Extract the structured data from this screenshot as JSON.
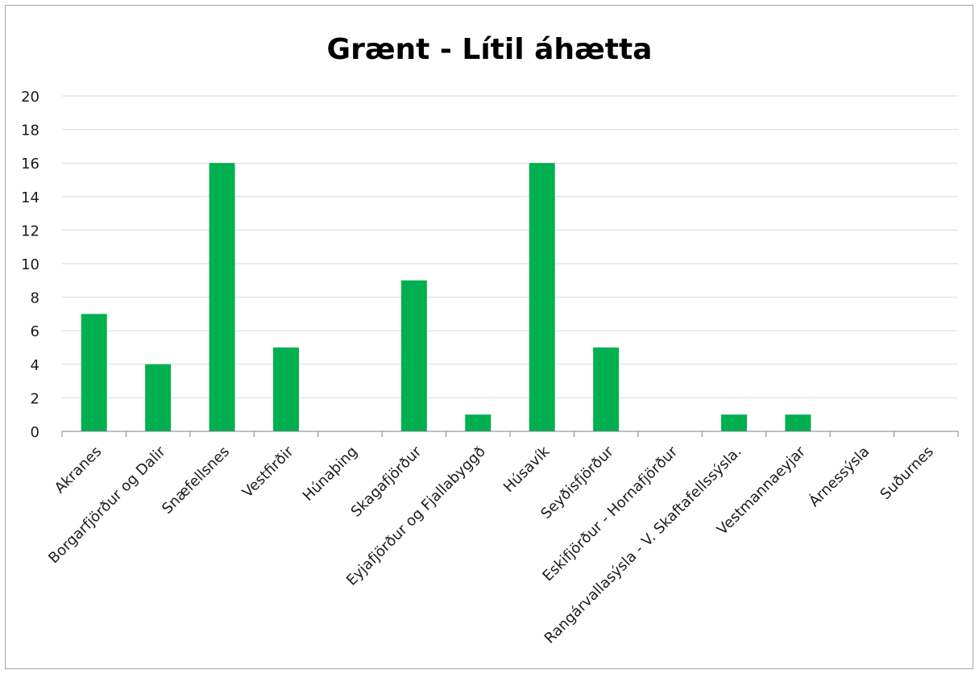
{
  "chart_data": {
    "type": "bar",
    "title": "Grænt - Lítil áhætta",
    "xlabel": "",
    "ylabel": "",
    "categories": [
      "Akranes",
      "Borgarfjörður og Dalir",
      "Snæfellsnes",
      "Vestfirðir",
      "Húnaþing",
      "Skagafjörður",
      "Eyjafjörður og Fjallabyggð",
      "Húsavík",
      "Seyðisfjörður",
      "Eskifjörður - Hornafjörður",
      "Rangárvallasýsla - V. Skaftafellssýsla.",
      "Vestmannaeyjar",
      "Árnessýsla",
      "Suðurnes"
    ],
    "values": [
      7,
      4,
      16,
      5,
      0,
      9,
      1,
      16,
      5,
      0,
      1,
      1,
      0,
      0
    ],
    "ylim": [
      0,
      20
    ],
    "ytick_step": 2,
    "grid": true,
    "legend": "none",
    "colors": {
      "bar": "#00b050",
      "grid": "#d9d9d9",
      "axis": "#808080"
    }
  }
}
